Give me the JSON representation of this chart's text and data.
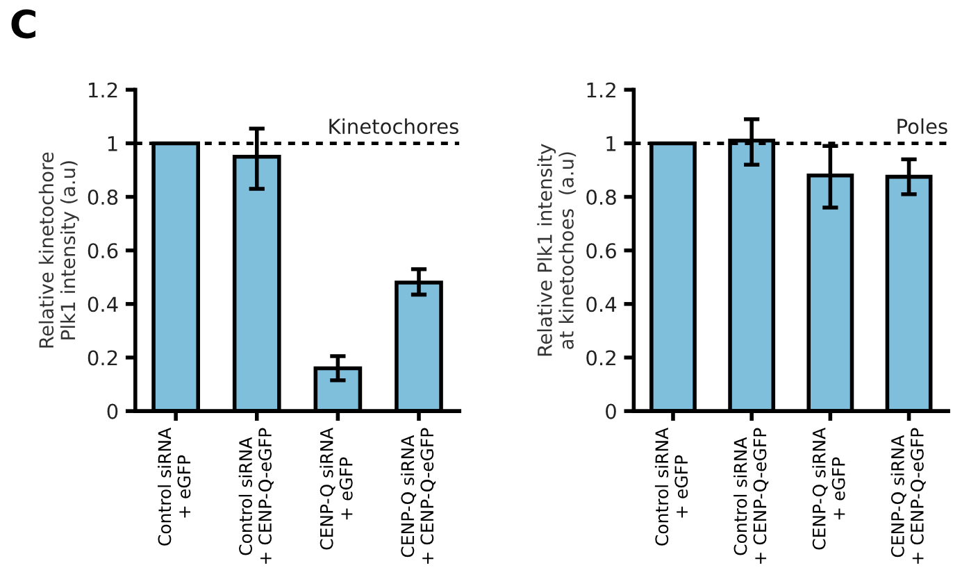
{
  "chart_data": [
    {
      "type": "bar",
      "annotations": [
        "C"
      ],
      "ylabel": "Relative kinetochore\nPlk1 intensity (a.u)",
      "categories": [
        "Control siRNA\n+ eGFP",
        "Control siRNA\n+ CENP-Q-eGFP",
        "CENP-Q siRNA\n+ eGFP",
        "CENP-Q siRNA\n+ CENP-Q-eGFP"
      ],
      "values": [
        1.0,
        0.95,
        0.16,
        0.48
      ],
      "color": "#7fbfdc",
      "errors": [
        null,
        [
          0.83,
          1.055
        ],
        [
          0.115,
          0.205
        ],
        [
          0.435,
          0.53
        ]
      ],
      "ylim": [
        0,
        1.2
      ],
      "yticks": [
        0,
        0.2,
        0.4,
        0.6,
        0.8,
        1,
        1.2
      ],
      "grid": false,
      "ref_lines": [
        {
          "axis": "y",
          "value": 1,
          "label": "Kinetochores",
          "line_style": "dotted"
        }
      ]
    },
    {
      "type": "bar",
      "ylabel": "Relative Plk1 intensity\nat kinetochoes  (a.u)",
      "categories": [
        "Control siRNA\n+ eGFP",
        "Control siRNA\n+ CENP-Q-eGFP",
        "CENP-Q siRNA\n+ eGFP",
        "CENP-Q siRNA\n+ CENP-Q-eGFP"
      ],
      "values": [
        1.0,
        1.01,
        0.88,
        0.875
      ],
      "color": "#7fbfdc",
      "errors": [
        null,
        [
          0.92,
          1.09
        ],
        [
          0.76,
          0.99
        ],
        [
          0.81,
          0.94
        ]
      ],
      "ylim": [
        0,
        1.2
      ],
      "yticks": [
        0,
        0.2,
        0.4,
        0.6,
        0.8,
        1,
        1.2
      ],
      "grid": false,
      "ref_lines": [
        {
          "axis": "y",
          "value": 1,
          "label": "Poles",
          "line_style": "dotted"
        }
      ]
    }
  ]
}
